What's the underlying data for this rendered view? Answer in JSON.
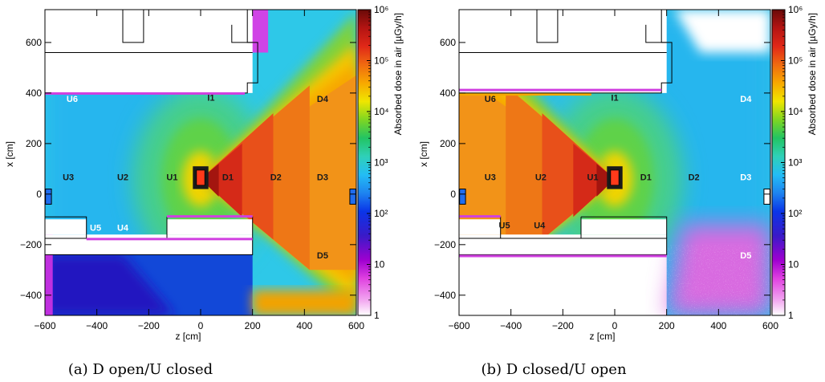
{
  "chart_data": [
    {
      "type": "heatmap",
      "caption": "(a) D open/U closed",
      "xlabel": "z [cm]",
      "ylabel": "x [cm]",
      "xlim": [
        -600,
        600
      ],
      "ylim": [
        -480,
        730
      ],
      "xticks": [
        -600,
        -400,
        -200,
        0,
        200,
        400,
        600
      ],
      "yticks": [
        -400,
        -200,
        0,
        200,
        400,
        600
      ],
      "colorbar": {
        "label": "Absorbed dose in air [µGy/h]",
        "scale": "log",
        "range": [
          1,
          1000000
        ],
        "tick_labels": [
          "1",
          "10",
          "10²",
          "10³",
          "10⁴",
          "10⁵",
          "10⁶"
        ]
      },
      "open_side": "D",
      "regions": [
        {
          "label": "U6",
          "z": -495,
          "x": 365,
          "color": "#ffffff"
        },
        {
          "label": "I1",
          "z": 40,
          "x": 370,
          "color": "#1a1a1a"
        },
        {
          "label": "D4",
          "z": 470,
          "x": 365,
          "color": "#1a1a1a"
        },
        {
          "label": "U3",
          "z": -510,
          "x": 55,
          "color": "#1a1a1a"
        },
        {
          "label": "U2",
          "z": -300,
          "x": 55,
          "color": "#1a1a1a"
        },
        {
          "label": "U1",
          "z": -110,
          "x": 55,
          "color": "#1a1a1a"
        },
        {
          "label": "D1",
          "z": 105,
          "x": 55,
          "color": "#1a1a1a"
        },
        {
          "label": "D2",
          "z": 290,
          "x": 55,
          "color": "#1a1a1a"
        },
        {
          "label": "D3",
          "z": 470,
          "x": 55,
          "color": "#1a1a1a"
        },
        {
          "label": "U5",
          "z": -405,
          "x": -145,
          "color": "#ffffff"
        },
        {
          "label": "U4",
          "z": -300,
          "x": -145,
          "color": "#ffffff"
        },
        {
          "label": "D5",
          "z": 470,
          "x": -255,
          "color": "#1a1a1a"
        }
      ]
    },
    {
      "type": "heatmap",
      "caption": "(b) D closed/U open",
      "xlabel": "z [cm]",
      "ylabel": "x [cm]",
      "xlim": [
        -600,
        600
      ],
      "ylim": [
        -480,
        730
      ],
      "xticks": [
        -600,
        -400,
        -200,
        0,
        200,
        400,
        600
      ],
      "yticks": [
        -400,
        -200,
        0,
        200,
        400,
        600
      ],
      "colorbar": {
        "label": "Absorbed dose in air [µGy/h]",
        "scale": "log",
        "range": [
          1,
          1000000
        ],
        "tick_labels": [
          "1",
          "10",
          "10²",
          "10³",
          "10⁴",
          "10⁵",
          "10⁶"
        ]
      },
      "open_side": "U",
      "regions": [
        {
          "label": "U6",
          "z": -480,
          "x": 365,
          "color": "#1a1a1a"
        },
        {
          "label": "I1",
          "z": 0,
          "x": 370,
          "color": "#1a1a1a"
        },
        {
          "label": "D4",
          "z": 505,
          "x": 365,
          "color": "#ffffff"
        },
        {
          "label": "U3",
          "z": -480,
          "x": 55,
          "color": "#1a1a1a"
        },
        {
          "label": "U2",
          "z": -285,
          "x": 55,
          "color": "#1a1a1a"
        },
        {
          "label": "U1",
          "z": -85,
          "x": 55,
          "color": "#1a1a1a"
        },
        {
          "label": "D1",
          "z": 120,
          "x": 55,
          "color": "#1a1a1a"
        },
        {
          "label": "D2",
          "z": 305,
          "x": 55,
          "color": "#1a1a1a"
        },
        {
          "label": "D3",
          "z": 505,
          "x": 55,
          "color": "#ffffff"
        },
        {
          "label": "U5",
          "z": -425,
          "x": -135,
          "color": "#1a1a1a"
        },
        {
          "label": "U4",
          "z": -290,
          "x": -135,
          "color": "#1a1a1a"
        },
        {
          "label": "D5",
          "z": 505,
          "x": -255,
          "color": "#ffffff"
        }
      ]
    }
  ]
}
